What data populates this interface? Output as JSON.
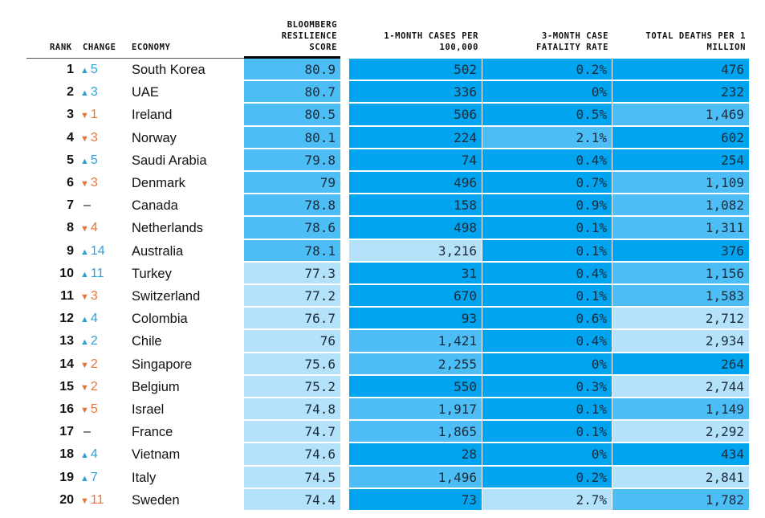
{
  "colors": {
    "level_0": "#00a4ef",
    "level_1": "#4dbdf6",
    "level_2": "#b4e2fa",
    "up": "#2f9fd8",
    "down": "#e8743b"
  },
  "headers": {
    "rank": "RANK",
    "change": "CHANGE",
    "economy": "ECONOMY",
    "score": [
      "BLOOMBERG",
      "RESILIENCE",
      "SCORE"
    ],
    "cases": [
      "1-MONTH CASES PER",
      "100,000"
    ],
    "cfr": [
      "3-MONTH CASE",
      "FATALITY RATE"
    ],
    "deaths": [
      "TOTAL DEATHS PER 1",
      "MILLION"
    ]
  },
  "chart_data": {
    "type": "table",
    "columns": [
      "RANK",
      "CHANGE",
      "ECONOMY",
      "BLOOMBERG RESILIENCE SCORE",
      "1-MONTH CASES PER 100,000",
      "3-MONTH CASE FATALITY RATE",
      "TOTAL DEATHS PER 1 MILLION"
    ],
    "shade_levels_note_keys": [
      "level_0",
      "level_1",
      "level_2"
    ],
    "rows": [
      {
        "rank": "1",
        "dir": "up",
        "change": "5",
        "economy": "South Korea",
        "score": "80.9",
        "cases": "502",
        "cfr": "0.2%",
        "deaths": "476",
        "shade": [
          1,
          0,
          0,
          0
        ]
      },
      {
        "rank": "2",
        "dir": "up",
        "change": "3",
        "economy": "UAE",
        "score": "80.7",
        "cases": "336",
        "cfr": "0%",
        "deaths": "232",
        "shade": [
          1,
          0,
          0,
          0
        ]
      },
      {
        "rank": "3",
        "dir": "down",
        "change": "1",
        "economy": "Ireland",
        "score": "80.5",
        "cases": "506",
        "cfr": "0.5%",
        "deaths": "1,469",
        "shade": [
          1,
          0,
          0,
          1
        ]
      },
      {
        "rank": "4",
        "dir": "down",
        "change": "3",
        "economy": "Norway",
        "score": "80.1",
        "cases": "224",
        "cfr": "2.1%",
        "deaths": "602",
        "shade": [
          1,
          0,
          1,
          0
        ]
      },
      {
        "rank": "5",
        "dir": "up",
        "change": "5",
        "economy": "Saudi Arabia",
        "score": "79.8",
        "cases": "74",
        "cfr": "0.4%",
        "deaths": "254",
        "shade": [
          1,
          0,
          0,
          0
        ]
      },
      {
        "rank": "6",
        "dir": "down",
        "change": "3",
        "economy": "Denmark",
        "score": "79",
        "cases": "496",
        "cfr": "0.7%",
        "deaths": "1,109",
        "shade": [
          1,
          0,
          0,
          1
        ]
      },
      {
        "rank": "7",
        "dir": "none",
        "change": "–",
        "economy": "Canada",
        "score": "78.8",
        "cases": "158",
        "cfr": "0.9%",
        "deaths": "1,082",
        "shade": [
          1,
          0,
          0,
          1
        ]
      },
      {
        "rank": "8",
        "dir": "down",
        "change": "4",
        "economy": "Netherlands",
        "score": "78.6",
        "cases": "498",
        "cfr": "0.1%",
        "deaths": "1,311",
        "shade": [
          1,
          0,
          0,
          1
        ]
      },
      {
        "rank": "9",
        "dir": "up",
        "change": "14",
        "economy": "Australia",
        "score": "78.1",
        "cases": "3,216",
        "cfr": "0.1%",
        "deaths": "376",
        "shade": [
          1,
          2,
          0,
          0
        ]
      },
      {
        "rank": "10",
        "dir": "up",
        "change": "11",
        "economy": "Turkey",
        "score": "77.3",
        "cases": "31",
        "cfr": "0.4%",
        "deaths": "1,156",
        "shade": [
          2,
          0,
          0,
          1
        ]
      },
      {
        "rank": "11",
        "dir": "down",
        "change": "3",
        "economy": "Switzerland",
        "score": "77.2",
        "cases": "670",
        "cfr": "0.1%",
        "deaths": "1,583",
        "shade": [
          2,
          0,
          0,
          1
        ]
      },
      {
        "rank": "12",
        "dir": "up",
        "change": "4",
        "economy": "Colombia",
        "score": "76.7",
        "cases": "93",
        "cfr": "0.6%",
        "deaths": "2,712",
        "shade": [
          2,
          0,
          0,
          2
        ]
      },
      {
        "rank": "13",
        "dir": "up",
        "change": "2",
        "economy": "Chile",
        "score": "76",
        "cases": "1,421",
        "cfr": "0.4%",
        "deaths": "2,934",
        "shade": [
          2,
          1,
          0,
          2
        ]
      },
      {
        "rank": "14",
        "dir": "down",
        "change": "2",
        "economy": "Singapore",
        "score": "75.6",
        "cases": "2,255",
        "cfr": "0%",
        "deaths": "264",
        "shade": [
          2,
          1,
          0,
          0
        ]
      },
      {
        "rank": "15",
        "dir": "down",
        "change": "2",
        "economy": "Belgium",
        "score": "75.2",
        "cases": "550",
        "cfr": "0.3%",
        "deaths": "2,744",
        "shade": [
          2,
          0,
          0,
          2
        ]
      },
      {
        "rank": "16",
        "dir": "down",
        "change": "5",
        "economy": "Israel",
        "score": "74.8",
        "cases": "1,917",
        "cfr": "0.1%",
        "deaths": "1,149",
        "shade": [
          2,
          1,
          0,
          1
        ]
      },
      {
        "rank": "17",
        "dir": "none",
        "change": "–",
        "economy": "France",
        "score": "74.7",
        "cases": "1,865",
        "cfr": "0.1%",
        "deaths": "2,292",
        "shade": [
          2,
          1,
          0,
          2
        ]
      },
      {
        "rank": "18",
        "dir": "up",
        "change": "4",
        "economy": "Vietnam",
        "score": "74.6",
        "cases": "28",
        "cfr": "0%",
        "deaths": "434",
        "shade": [
          2,
          0,
          0,
          0
        ]
      },
      {
        "rank": "19",
        "dir": "up",
        "change": "7",
        "economy": "Italy",
        "score": "74.5",
        "cases": "1,496",
        "cfr": "0.2%",
        "deaths": "2,841",
        "shade": [
          2,
          1,
          0,
          2
        ]
      },
      {
        "rank": "20",
        "dir": "down",
        "change": "11",
        "economy": "Sweden",
        "score": "74.4",
        "cases": "73",
        "cfr": "2.7%",
        "deaths": "1,782",
        "shade": [
          2,
          0,
          2,
          1
        ]
      }
    ]
  }
}
